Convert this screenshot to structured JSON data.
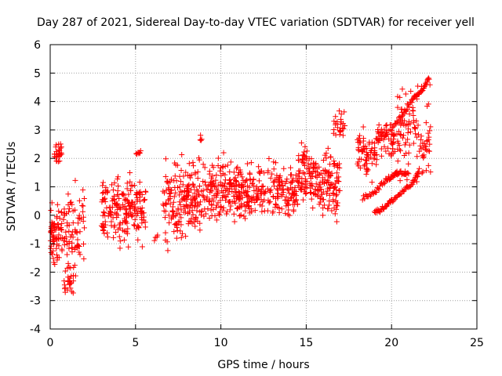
{
  "chart_data": {
    "type": "scatter",
    "title": "Day 287 of 2021, Sidereal Day-to-day VTEC variation (SDTVAR) for receiver yell",
    "xlabel": "GPS time / hours",
    "ylabel": "SDTVAR / TECUs",
    "xlim": [
      0,
      25
    ],
    "ylim": [
      -4,
      6
    ],
    "xticks": [
      "0",
      "5",
      "10",
      "15",
      "20",
      "25"
    ],
    "yticks": [
      "-4",
      "-3",
      "-2",
      "-1",
      "0",
      "1",
      "2",
      "3",
      "4",
      "5",
      "6"
    ],
    "grid": true,
    "marker": "+",
    "color": "#ff0000",
    "series": [
      {
        "name": "SDTVAR",
        "clusters": [
          {
            "x0": 0.0,
            "x1": 0.25,
            "y_lo": -2.0,
            "y_hi": 0.7,
            "n": 30
          },
          {
            "x0": 0.2,
            "x1": 0.7,
            "y_lo": 1.7,
            "y_hi": 2.6,
            "n": 30
          },
          {
            "x0": 0.2,
            "x1": 1.0,
            "y_lo": -2.0,
            "y_hi": 1.0,
            "n": 55
          },
          {
            "x0": 0.8,
            "x1": 1.4,
            "y_lo": -3.1,
            "y_hi": -1.5,
            "n": 25
          },
          {
            "x0": 1.0,
            "x1": 2.0,
            "y_lo": -2.4,
            "y_hi": 1.6,
            "n": 60
          },
          {
            "x0": 3.0,
            "x1": 5.6,
            "y_lo": -1.4,
            "y_hi": 1.9,
            "n": 200
          },
          {
            "x0": 5.0,
            "x1": 5.3,
            "y_lo": 2.0,
            "y_hi": 2.3,
            "n": 8
          },
          {
            "x0": 6.0,
            "x1": 6.5,
            "y_lo": -1.1,
            "y_hi": -0.5,
            "n": 4
          },
          {
            "x0": 6.6,
            "x1": 9.0,
            "y_lo": -1.5,
            "y_hi": 2.5,
            "n": 190
          },
          {
            "x0": 8.7,
            "x1": 8.9,
            "y_lo": 2.5,
            "y_hi": 2.9,
            "n": 4
          },
          {
            "x0": 9.0,
            "x1": 11.2,
            "y_lo": -0.7,
            "y_hi": 2.4,
            "n": 160
          },
          {
            "x0": 11.0,
            "x1": 14.5,
            "y_lo": -0.5,
            "y_hi": 2.2,
            "n": 230
          },
          {
            "x0": 14.5,
            "x1": 15.5,
            "y_lo": -0.2,
            "y_hi": 3.0,
            "n": 80
          },
          {
            "x0": 15.5,
            "x1": 17.0,
            "y_lo": -0.6,
            "y_hi": 2.8,
            "n": 120
          },
          {
            "x0": 16.6,
            "x1": 17.3,
            "y_lo": 2.5,
            "y_hi": 3.8,
            "n": 25
          },
          {
            "x0": 18.0,
            "x1": 19.0,
            "y_lo": 1.0,
            "y_hi": 3.4,
            "n": 60
          },
          {
            "x0": 19.0,
            "x1": 20.2,
            "y_lo": 1.5,
            "y_hi": 3.7,
            "n": 60
          },
          {
            "x0": 20.3,
            "x1": 22.3,
            "y_lo": 0.6,
            "y_hi": 5.0,
            "n": 110
          }
        ],
        "tracks": [
          {
            "x": [
              18.3,
              19.0,
              19.6,
              20.1,
              20.4,
              21.0
            ],
            "y": [
              0.6,
              0.8,
              1.2,
              1.4,
              1.5,
              1.5
            ],
            "n": 60
          },
          {
            "x": [
              19.0,
              19.5,
              20.0,
              20.6,
              21.2,
              21.6
            ],
            "y": [
              0.1,
              0.25,
              0.5,
              0.8,
              1.1,
              1.5
            ],
            "n": 60
          },
          {
            "x": [
              19.0,
              20.0,
              20.7,
              21.3,
              21.8,
              22.2
            ],
            "y": [
              2.6,
              3.0,
              3.6,
              4.1,
              4.4,
              4.8
            ],
            "n": 60
          }
        ]
      }
    ]
  }
}
